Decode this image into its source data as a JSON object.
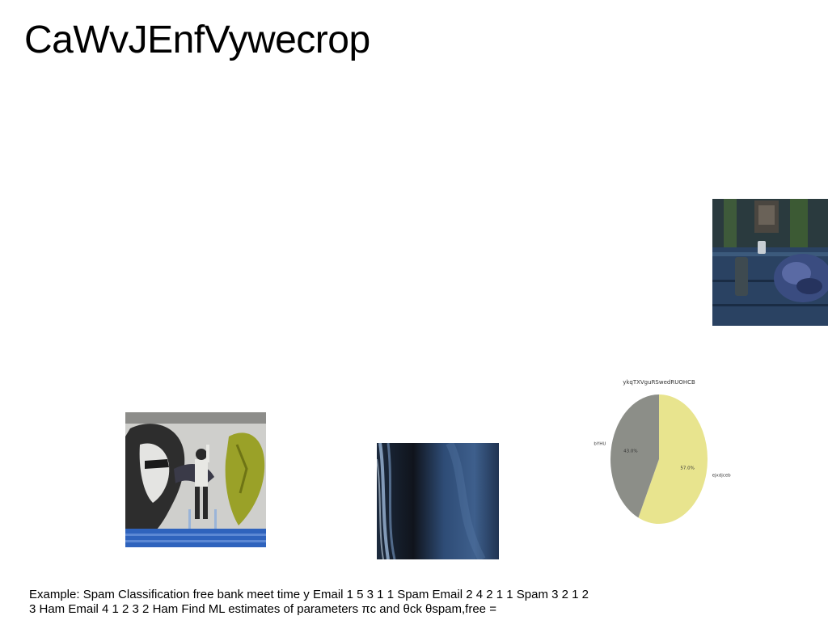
{
  "slide": {
    "title": "CaWvJEnfVywecrop",
    "body_text": "Example: Spam Classification free bank meet time y Email 1 5 3 1 1 Spam Email 2 4 2 1 1 Spam 3 2 1 2 3 Ham Email 4 1 2 3 2 Ham Find ML estimates of parameters πc and θck θspam,free ="
  },
  "chart_data": {
    "type": "pie",
    "title": "ykqTXVguRSwedRUOHCB",
    "slices": [
      {
        "label": "ejxdjceb",
        "value": 57.0,
        "pct_label": "57.0%",
        "color": "#e8e48e"
      },
      {
        "label": "bYHU",
        "value": 43.0,
        "pct_label": "43.0%",
        "color": "#8c8e88"
      }
    ],
    "start": "top",
    "direction": "clockwise"
  }
}
